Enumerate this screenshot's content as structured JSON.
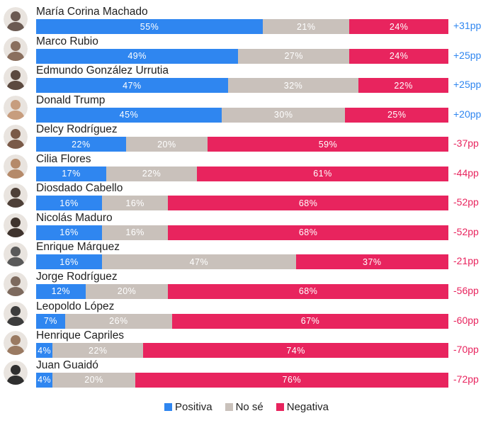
{
  "colors": {
    "positiva": "#2f86f0",
    "nose": "#c9c1bb",
    "negativa": "#e8245e"
  },
  "legend": [
    {
      "key": "positiva",
      "label": "Positiva"
    },
    {
      "key": "nose",
      "label": "No sé"
    },
    {
      "key": "negativa",
      "label": "Negativa"
    }
  ],
  "chart_data": {
    "type": "bar",
    "orientation": "horizontal",
    "stacked": true,
    "series_names": [
      "Positiva",
      "No sé",
      "Negativa"
    ],
    "rows": [
      {
        "name": "María Corina Machado",
        "positiva": 55,
        "nose": 21,
        "negativa": 24,
        "net": "+31pp"
      },
      {
        "name": "Marco Rubio",
        "positiva": 49,
        "nose": 27,
        "negativa": 24,
        "net": "+25pp"
      },
      {
        "name": "Edmundo González Urrutia",
        "positiva": 47,
        "nose": 32,
        "negativa": 22,
        "net": "+25pp"
      },
      {
        "name": "Donald Trump",
        "positiva": 45,
        "nose": 30,
        "negativa": 25,
        "net": "+20pp"
      },
      {
        "name": "Delcy Rodríguez",
        "positiva": 22,
        "nose": 20,
        "negativa": 59,
        "net": "-37pp"
      },
      {
        "name": "Cilia Flores",
        "positiva": 17,
        "nose": 22,
        "negativa": 61,
        "net": "-44pp"
      },
      {
        "name": "Diosdado Cabello",
        "positiva": 16,
        "nose": 16,
        "negativa": 68,
        "net": "-52pp"
      },
      {
        "name": "Nicolás Maduro",
        "positiva": 16,
        "nose": 16,
        "negativa": 68,
        "net": "-52pp"
      },
      {
        "name": "Enrique Márquez",
        "positiva": 16,
        "nose": 47,
        "negativa": 37,
        "net": "-21pp"
      },
      {
        "name": "Jorge Rodríguez",
        "positiva": 12,
        "nose": 20,
        "negativa": 68,
        "net": "-56pp"
      },
      {
        "name": "Leopoldo López",
        "positiva": 7,
        "nose": 26,
        "negativa": 67,
        "net": "-60pp"
      },
      {
        "name": "Henrique Capriles",
        "positiva": 4,
        "nose": 22,
        "negativa": 74,
        "net": "-70pp"
      },
      {
        "name": "Juan Guaidó",
        "positiva": 4,
        "nose": 20,
        "negativa": 76,
        "net": "-72pp"
      }
    ]
  }
}
